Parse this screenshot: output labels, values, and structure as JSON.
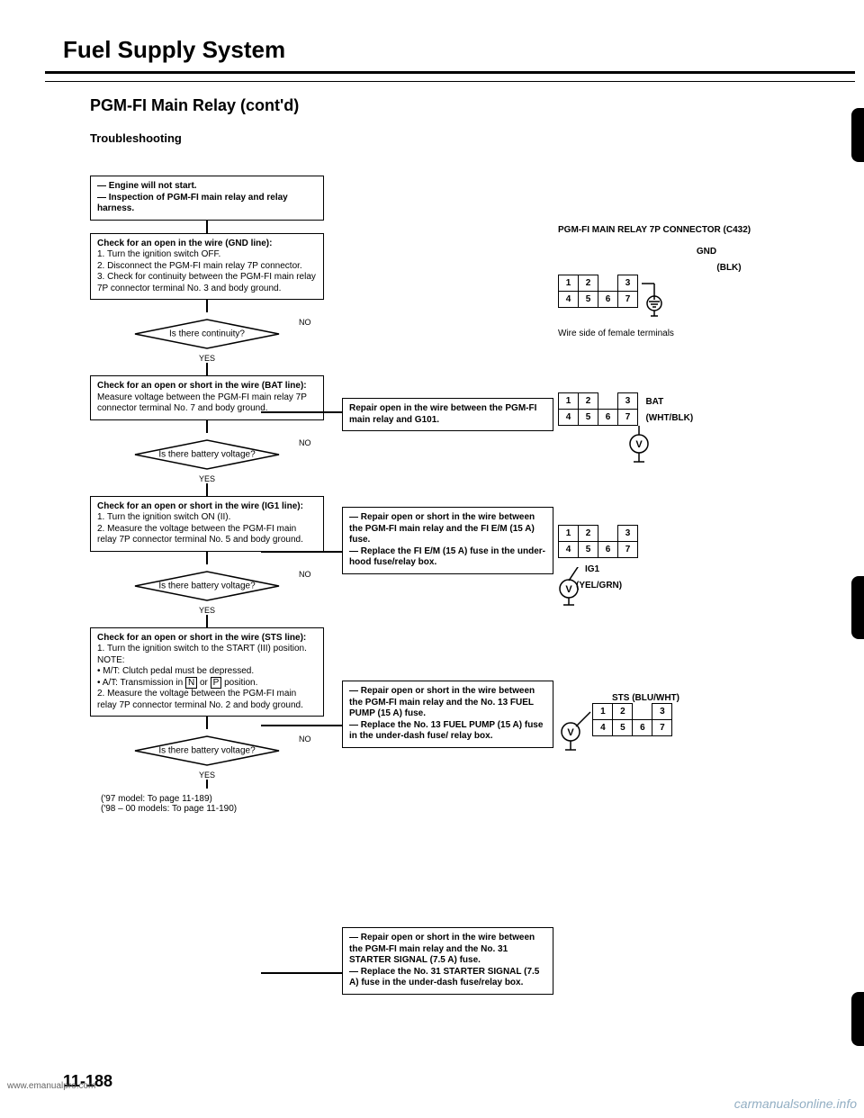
{
  "title": "Fuel Supply System",
  "subtitle": "PGM-FI Main Relay (cont'd)",
  "section": "Troubleshooting",
  "page_number": "11-188",
  "watermark_left": "www.emanualpro.com",
  "watermark_right": "carmanualsonline.info",
  "connector_header": "PGM-FI MAIN RELAY 7P CONNECTOR (C432)",
  "wire_side_note": "Wire side of female terminals",
  "flow": {
    "box1": "<b>— Engine will not start.</b><br><b>— Inspection of PGM-FI main relay and relay harness.</b>",
    "box2": "<b>Check for an open in the wire (GND line):</b><br>1. Turn the ignition switch OFF.<br>2. Disconnect the PGM-FI main relay 7P connector.<br>3. Check for continuity between the PGM-FI main relay 7P connector terminal No. 3 and body ground.",
    "d1": "Is there continuity?",
    "branch1": "<b>Repair open in the wire between the PGM-FI main relay and G101.</b>",
    "box3": "<b>Check for an open or short in the wire (BAT line):</b><br>Measure voltage between the PGM-FI main relay 7P connector terminal No. 7 and body ground.",
    "d2": "Is there battery voltage?",
    "branch2": "<b>— Repair open or short in the wire between the PGM-FI main relay and the FI E/M (15 A) fuse.</b><br><b>— Replace the FI E/M (15 A) fuse in the under-hood fuse/relay box.</b>",
    "box4": "<b>Check for an open or short in the wire (IG1 line):</b><br>1. Turn the ignition switch ON (II).<br>2. Measure the voltage between the PGM-FI main relay 7P connector terminal No. 5 and body ground.",
    "d3": "Is there battery voltage?",
    "branch3": "<b>— Repair open or short in the wire between the PGM-FI main relay and the No. 13 FUEL PUMP (15 A) fuse.</b><br><b>— Replace the No. 13 FUEL PUMP (15 A) fuse in the under-dash fuse/ relay box.</b>",
    "box5": "<b>Check for an open or short in the wire (STS line):</b><br>1. Turn the ignition switch to the START (III) position.<br>NOTE:<br>• M/T: Clutch pedal must be depressed.<br>• A/T: Transmission in <span style='border:1px solid #000;padding:0 2px;'>N</span> or <span style='border:1px solid #000;padding:0 2px;'>P</span> position.<br>2. Measure the voltage between the PGM-FI main relay 7P connector terminal No. 2 and body ground.",
    "d4": "Is there battery voltage?",
    "branch4": "<b>— Repair open or short in the wire between the PGM-FI main relay and the No. 31 STARTER SIGNAL (7.5 A) fuse.</b><br><b>— Replace the No. 31 STARTER SIGNAL (7.5 A) fuse in the under-dash fuse/relay box.</b>",
    "footnote1": "('97 model: To page 11-189)",
    "footnote2": "('98 – 00 models: To page 11-190)"
  },
  "connectors": [
    {
      "label_top": "GND",
      "label_right": "(BLK)",
      "signal": "GND"
    },
    {
      "label": "BAT",
      "label2": "(WHT/BLK)"
    },
    {
      "label": "IG1",
      "label2": "(YEL/GRN)"
    },
    {
      "label": "STS (BLU/WHT)"
    }
  ],
  "yes": "YES",
  "no": "NO"
}
